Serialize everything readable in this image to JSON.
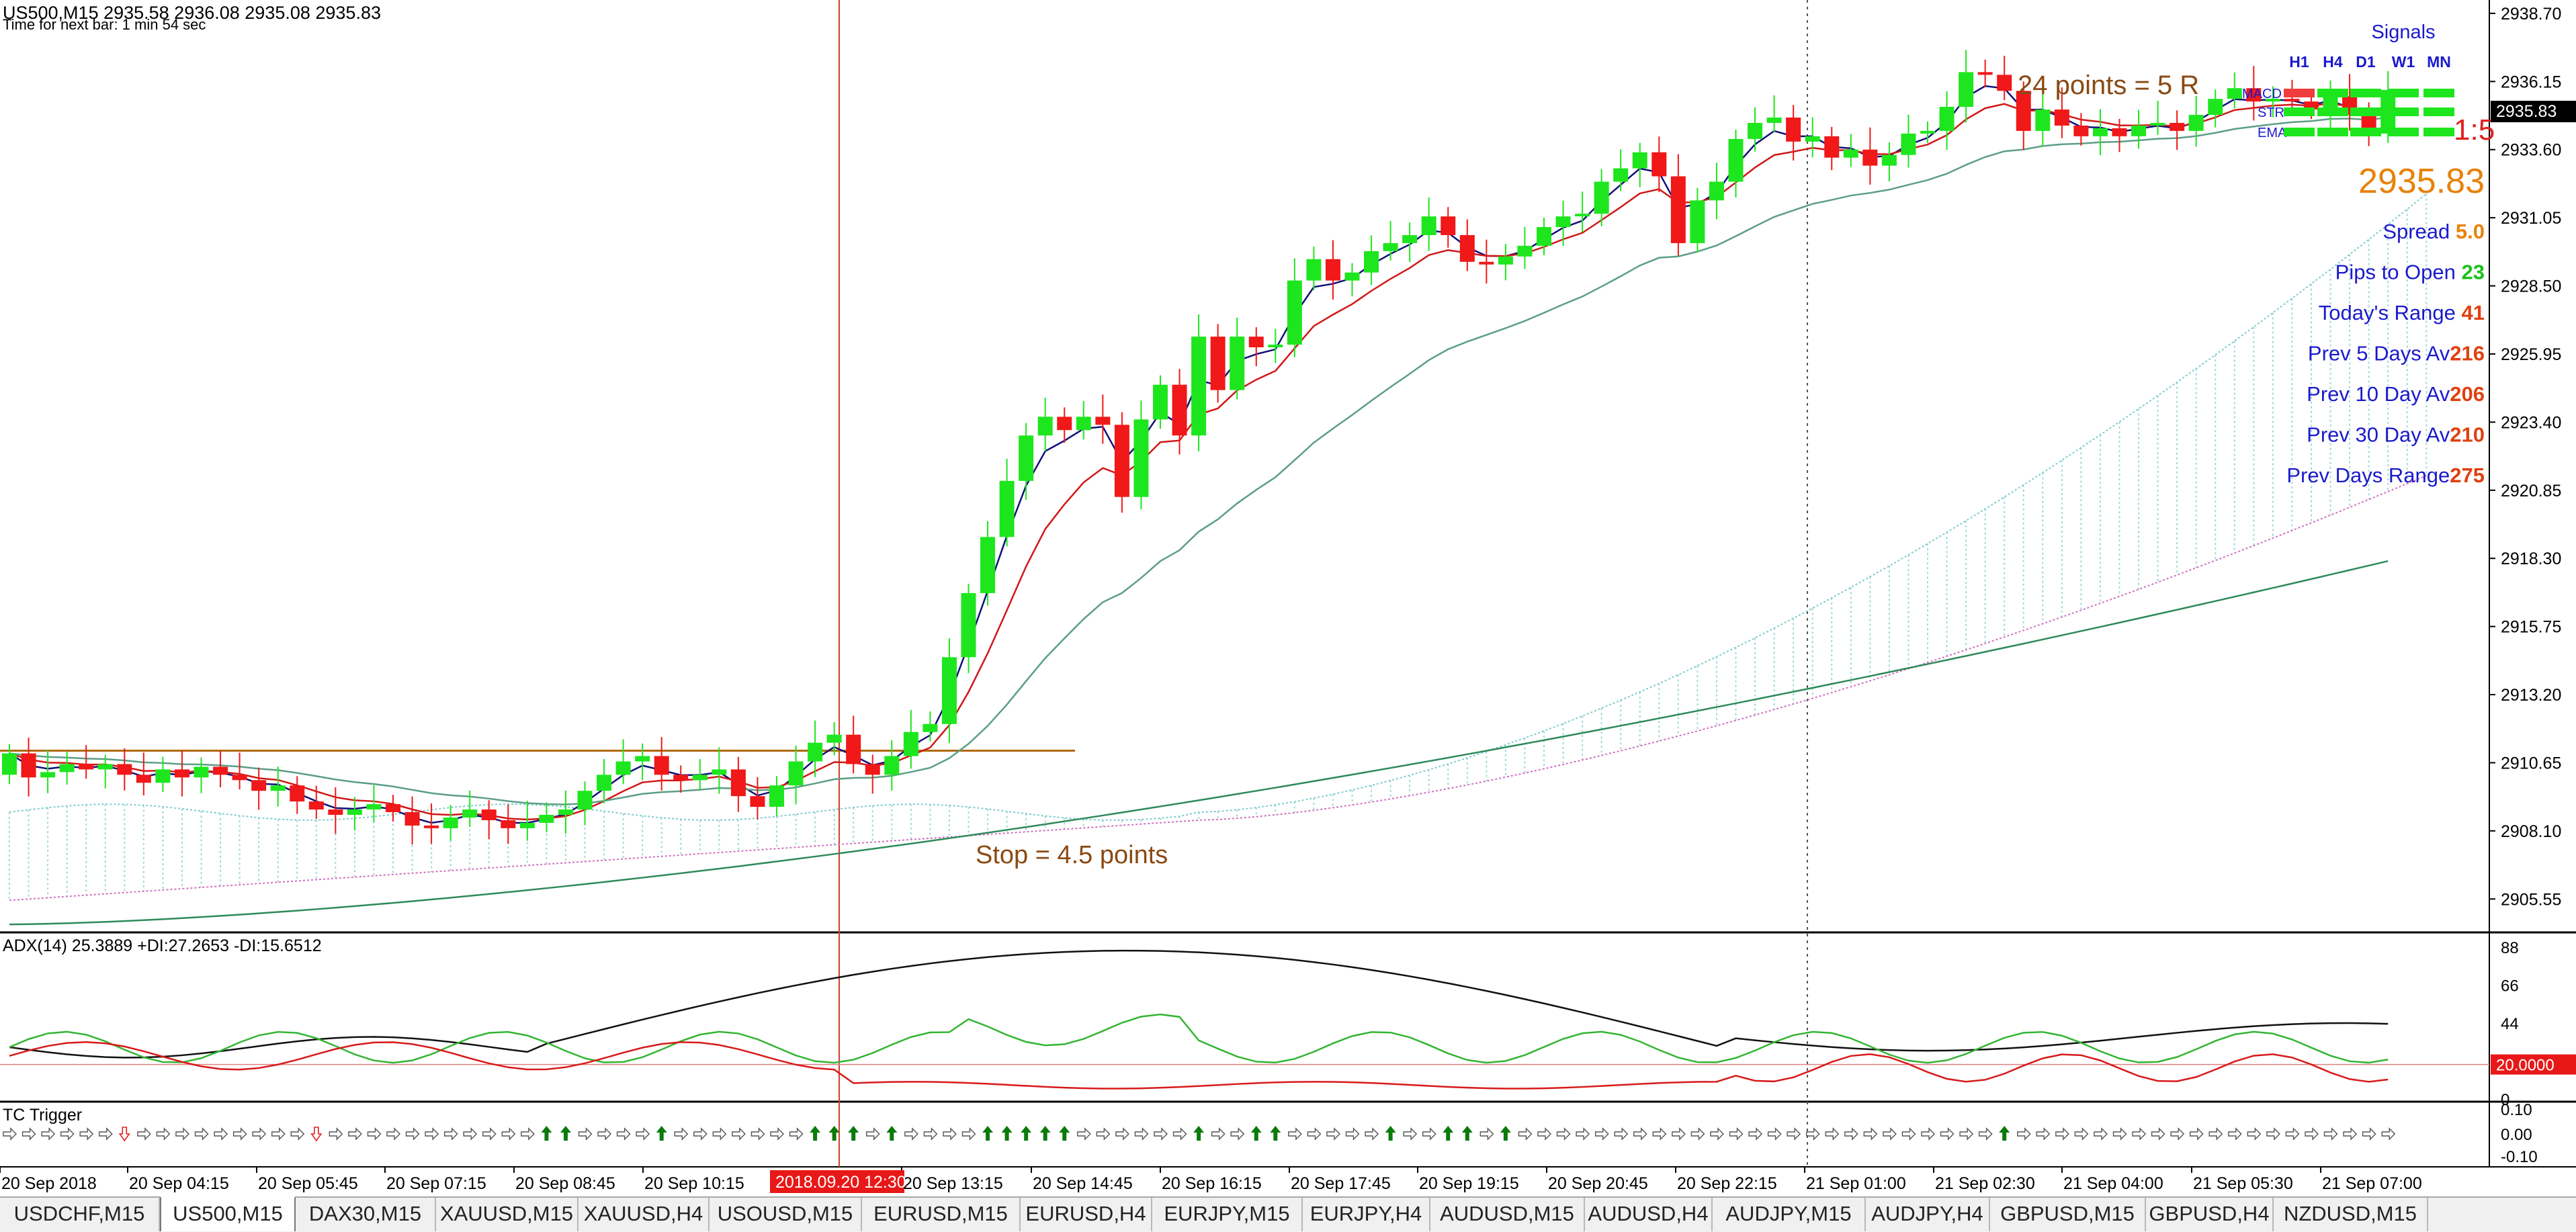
{
  "window": {
    "header": "US500,M15  2935.58 2936.08 2935.08 2935.83",
    "next_bar": "Time for next bar: 1 min 54 sec",
    "last_price_tag": "2935.83"
  },
  "main_chart": {
    "price_axis_labels": [
      "2938.70",
      "2936.15",
      "2933.60",
      "2931.05",
      "2928.50",
      "2925.95",
      "2923.40",
      "2920.85",
      "2918.30",
      "2915.75",
      "2913.20",
      "2910.65",
      "2908.10",
      "2905.55"
    ],
    "ylim": [
      2904.3,
      2939.2
    ],
    "annotations": {
      "target": "24 points = 5 R",
      "stop": "Stop = 4.5 points",
      "risk_reward": "1:5"
    }
  },
  "signals_panel": {
    "title": "Signals",
    "timeframes": [
      "H1",
      "H4",
      "D1",
      "W1",
      "MN"
    ],
    "rows": [
      "MACD",
      "STR",
      "EMA"
    ],
    "big_price": "2935.83",
    "stats": [
      {
        "label": "Spread",
        "value": "5.0"
      },
      {
        "label": "Pips to Open",
        "value": "23"
      },
      {
        "label": "Today's Range",
        "value": "41"
      },
      {
        "label": "Prev 5 Days Av",
        "value": "216"
      },
      {
        "label": "Prev 10 Day Av",
        "value": "206"
      },
      {
        "label": "Prev 30 Day Av",
        "value": "210"
      },
      {
        "label": "Prev Days Range",
        "value": "275"
      }
    ],
    "colors": {
      "title": "#1a1acc",
      "value_orange": "#e8820a",
      "value_green": "#19c219",
      "value_red": "#e04010",
      "box_green": "#1ee61e",
      "box_red": "#f03c3c"
    }
  },
  "adx_panel": {
    "label": "ADX(14) 25.3889 +DI:27.2653 -DI:15.6512",
    "axis_labels": [
      "88",
      "66",
      "44",
      "20.0000",
      "0"
    ]
  },
  "tc_panel": {
    "label": "TC Trigger",
    "axis_labels": [
      "0.10",
      "0.00",
      "-0.10"
    ]
  },
  "time_axis": {
    "labels": [
      "20 Sep 2018",
      "20 Sep 04:15",
      "20 Sep 05:45",
      "20 Sep 07:15",
      "20 Sep 08:45",
      "20 Sep 10:15",
      "20 Sep 13:15",
      "20 Sep 14:45",
      "20 Sep 16:15",
      "20 Sep 17:45",
      "20 Sep 19:15",
      "20 Sep 20:45",
      "20 Sep 22:15",
      "21 Sep 01:00",
      "21 Sep 02:30",
      "21 Sep 04:00",
      "21 Sep 05:30",
      "21 Sep 07:00"
    ],
    "crosshair_label": "2018.09.20 12:30"
  },
  "tabs": [
    {
      "label": "USDCHF,M15",
      "active": false
    },
    {
      "label": "US500,M15",
      "active": true
    },
    {
      "label": "DAX30,M15",
      "active": false
    },
    {
      "label": "XAUUSD,M15",
      "active": false
    },
    {
      "label": "XAUUSD,H4",
      "active": false
    },
    {
      "label": "USOUSD,M15",
      "active": false
    },
    {
      "label": "EURUSD,M15",
      "active": false
    },
    {
      "label": "EURUSD,H4",
      "active": false
    },
    {
      "label": "EURJPY,M15",
      "active": false
    },
    {
      "label": "EURJPY,H4",
      "active": false
    },
    {
      "label": "AUDUSD,M15",
      "active": false
    },
    {
      "label": "AUDUSD,H4",
      "active": false
    },
    {
      "label": "AUDJPY,M15",
      "active": false
    },
    {
      "label": "AUDJPY,H4",
      "active": false
    },
    {
      "label": "GBPUSD,M15",
      "active": false
    },
    {
      "label": "GBPUSD,H4",
      "active": false
    },
    {
      "label": "NZDUSD,M15",
      "active": false
    }
  ],
  "chart_data": {
    "type": "candlestick",
    "symbol": "US500",
    "timeframe": "M15",
    "ylim": [
      2904.3,
      2939.2
    ],
    "closes": [
      2911.0,
      2910.1,
      2910.3,
      2910.6,
      2910.4,
      2910.6,
      2910.2,
      2909.9,
      2910.4,
      2910.1,
      2910.5,
      2910.2,
      2910.0,
      2909.6,
      2909.8,
      2909.2,
      2908.9,
      2908.7,
      2908.9,
      2909.1,
      2908.8,
      2908.3,
      2908.2,
      2908.6,
      2908.9,
      2908.5,
      2908.2,
      2908.4,
      2908.7,
      2908.9,
      2909.6,
      2910.2,
      2910.7,
      2910.9,
      2910.2,
      2910.0,
      2910.2,
      2910.4,
      2909.4,
      2909.0,
      2909.8,
      2910.7,
      2911.4,
      2911.7,
      2910.6,
      2910.2,
      2910.9,
      2911.8,
      2912.1,
      2914.6,
      2917.0,
      2919.1,
      2921.2,
      2922.9,
      2923.6,
      2923.1,
      2923.6,
      2923.3,
      2920.6,
      2923.5,
      2924.8,
      2922.9,
      2926.6,
      2924.6,
      2926.6,
      2926.2,
      2926.3,
      2928.7,
      2929.5,
      2928.7,
      2929.0,
      2929.8,
      2930.1,
      2930.4,
      2931.1,
      2930.4,
      2929.4,
      2929.3,
      2929.6,
      2930.0,
      2930.7,
      2931.1,
      2931.2,
      2932.4,
      2932.9,
      2933.5,
      2932.6,
      2930.1,
      2931.7,
      2932.4,
      2934.0,
      2934.6,
      2934.8,
      2933.9,
      2934.1,
      2933.3,
      2933.6,
      2933.0,
      2933.4,
      2934.2,
      2934.3,
      2935.2,
      2936.5,
      2936.4,
      2935.8,
      2934.3,
      2935.1,
      2934.5,
      2934.1,
      2934.4,
      2934.1,
      2934.5,
      2934.6,
      2934.3,
      2934.9,
      2935.5,
      2935.9,
      2935.4,
      2935.5,
      2935.4,
      2935.1,
      2935.6,
      2934.9,
      2934.2,
      2935.83
    ],
    "adx": {
      "adx": 25.3889,
      "plus_di": 27.2653,
      "minus_di": 15.6512,
      "level": 20.0
    },
    "arrow_pattern": "wwwwwwrwwwwwwwwwrwwwwwwwwwwwGGwwwwGwwwwwwwGGGwGwwwwGGGGGwwwwwwGwwGGwwwwwGwwGGwGwwwwwwwwwwwwwwwwwwwwwwwwwGwwwwwwwwwwwww"
  }
}
